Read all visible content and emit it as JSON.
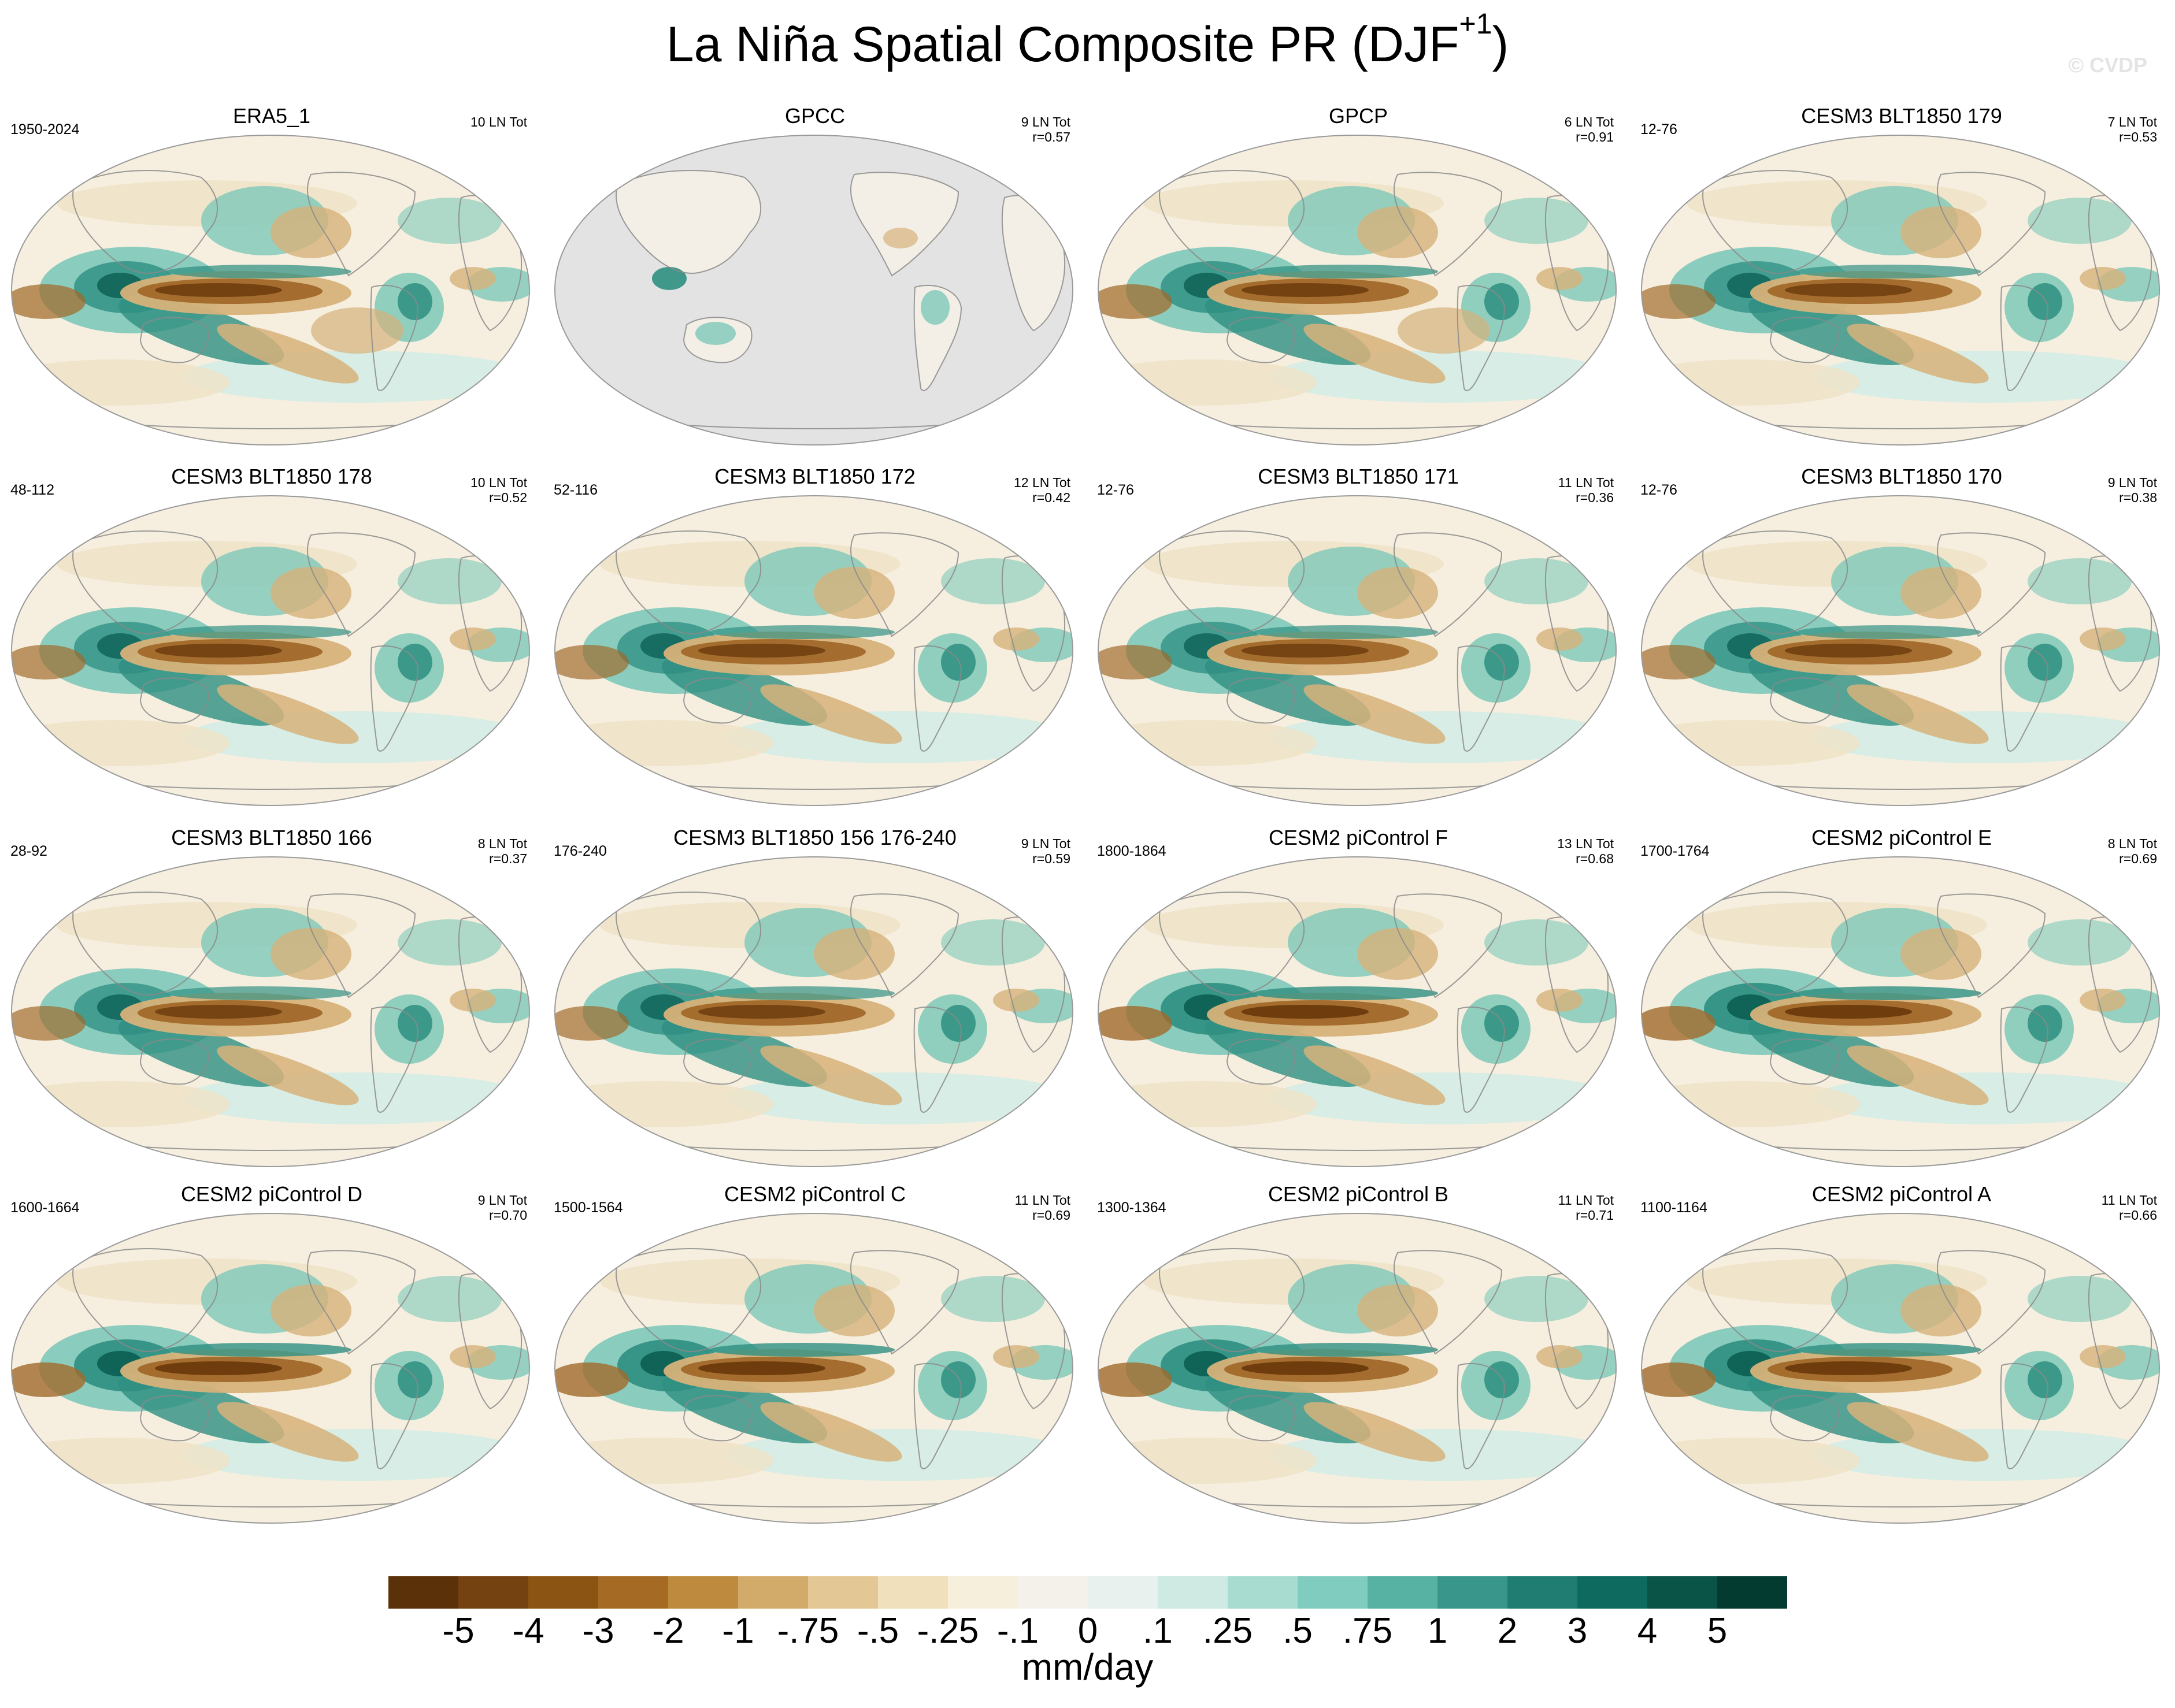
{
  "figure": {
    "title_main": "La Niña Spatial Composite PR (DJF",
    "title_sup": "+1",
    "title_close": ")",
    "watermark": "© CVDP"
  },
  "panels": [
    {
      "name": "ERA5_1",
      "period": "1950-2024",
      "count": "10 LN Tot",
      "corr": "",
      "variant": "obs1"
    },
    {
      "name": "GPCC",
      "period": "",
      "count": "9 LN Tot",
      "corr": "r=0.57",
      "variant": "land"
    },
    {
      "name": "GPCP",
      "period": "",
      "count": "6 LN Tot",
      "corr": "r=0.91",
      "variant": "obs2"
    },
    {
      "name": "CESM3 BLT1850 179",
      "period": "12-76",
      "count": "7 LN Tot",
      "corr": "r=0.53",
      "variant": "cesm3"
    },
    {
      "name": "CESM3 BLT1850 178",
      "period": "48-112",
      "count": "10 LN Tot",
      "corr": "r=0.52",
      "variant": "cesm3"
    },
    {
      "name": "CESM3 BLT1850 172",
      "period": "52-116",
      "count": "12 LN Tot",
      "corr": "r=0.42",
      "variant": "cesm3"
    },
    {
      "name": "CESM3 BLT1850 171",
      "period": "12-76",
      "count": "11 LN Tot",
      "corr": "r=0.36",
      "variant": "cesm3"
    },
    {
      "name": "CESM3 BLT1850 170",
      "period": "12-76",
      "count": "9 LN Tot",
      "corr": "r=0.38",
      "variant": "cesm3"
    },
    {
      "name": "CESM3 BLT1850 166",
      "period": "28-92",
      "count": "8 LN Tot",
      "corr": "r=0.37",
      "variant": "cesm3"
    },
    {
      "name": "CESM3 BLT1850 156 176-240",
      "period": "176-240",
      "count": "9 LN Tot",
      "corr": "r=0.59",
      "variant": "cesm3"
    },
    {
      "name": "CESM2 piControl F",
      "period": "1800-1864",
      "count": "13 LN Tot",
      "corr": "r=0.68",
      "variant": "cesm2"
    },
    {
      "name": "CESM2 piControl E",
      "period": "1700-1764",
      "count": "8 LN Tot",
      "corr": "r=0.69",
      "variant": "cesm2"
    },
    {
      "name": "CESM2 piControl D",
      "period": "1600-1664",
      "count": "9 LN Tot",
      "corr": "r=0.70",
      "variant": "cesm2"
    },
    {
      "name": "CESM2 piControl C",
      "period": "1500-1564",
      "count": "11 LN Tot",
      "corr": "r=0.69",
      "variant": "cesm2"
    },
    {
      "name": "CESM2 piControl B",
      "period": "1300-1364",
      "count": "11 LN Tot",
      "corr": "r=0.71",
      "variant": "cesm2"
    },
    {
      "name": "CESM2 piControl A",
      "period": "1100-1164",
      "count": "11 LN Tot",
      "corr": "r=0.66",
      "variant": "cesm2"
    }
  ],
  "colorbar": {
    "units": "mm/day",
    "colors": [
      "#5a3108",
      "#744110",
      "#8c5412",
      "#a56b24",
      "#be8b3e",
      "#d2ab6a",
      "#e3c895",
      "#f0e0bb",
      "#f6efdc",
      "#f4f1eb",
      "#e8f1ee",
      "#cfe9e3",
      "#a8dcd1",
      "#80cdbf",
      "#57b2a3",
      "#38978a",
      "#1f7d71",
      "#0e6a5f",
      "#0a5347",
      "#033b30"
    ],
    "labels": [
      "-5",
      "-4",
      "-3",
      "-2",
      "-1",
      "-.75",
      "-.5",
      "-.25",
      "-.1",
      "0",
      ".1",
      ".25",
      ".5",
      ".75",
      "1",
      "2",
      "3",
      "4",
      "5"
    ]
  }
}
